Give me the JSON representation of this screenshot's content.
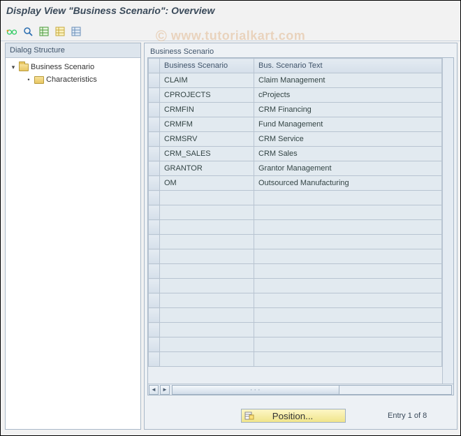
{
  "title": "Display View \"Business Scenario\": Overview",
  "watermark": "© www.tutorialkart.com",
  "toolbar": {
    "glasses": "glasses-icon",
    "toggle": "toggle-icon",
    "delimit": "delimit-icon",
    "expand": "expand-icon",
    "collapse": "collapse-icon"
  },
  "tree": {
    "header": "Dialog Structure",
    "root": {
      "label": "Business Scenario",
      "expanded": true
    },
    "child": {
      "label": "Characteristics"
    }
  },
  "group_label": "Business Scenario",
  "table": {
    "type": "table",
    "columns": [
      "Business Scenario",
      "Bus. Scenario Text"
    ],
    "rows": [
      [
        "CLAIM",
        "Claim Management"
      ],
      [
        "CPROJECTS",
        "cProjects"
      ],
      [
        "CRMFIN",
        "CRM Financing"
      ],
      [
        "CRMFM",
        "Fund Management"
      ],
      [
        "CRMSRV",
        "CRM Service"
      ],
      [
        "CRM_SALES",
        "CRM Sales"
      ],
      [
        "GRANTOR",
        "Grantor Management"
      ],
      [
        "OM",
        "Outsourced Manufacturing"
      ]
    ],
    "empty_rows": 12,
    "colors": {
      "header_bg": "#dde6ef",
      "cell_bg": "#e2eaf0",
      "border": "#b8c4d1",
      "text": "#3f5369"
    }
  },
  "footer": {
    "position_button": "Position...",
    "entry_text": "Entry 1 of 8"
  }
}
